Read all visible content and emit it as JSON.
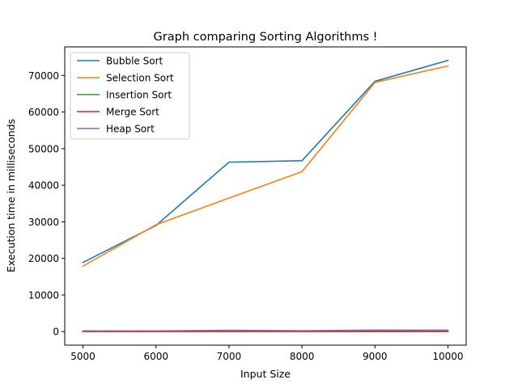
{
  "chart_data": {
    "type": "line",
    "title": "Graph comparing Sorting Algorithms !",
    "xlabel": "Input Size",
    "ylabel": "Execution time in milliseconds",
    "x": [
      5000,
      6000,
      7000,
      8000,
      9000,
      10000
    ],
    "xticks": [
      "5000",
      "6000",
      "7000",
      "8000",
      "9000",
      "10000"
    ],
    "yticks": [
      "0",
      "10000",
      "20000",
      "30000",
      "40000",
      "50000",
      "60000",
      "70000"
    ],
    "xlim": [
      4750,
      10250
    ],
    "ylim": [
      -3700,
      77800
    ],
    "legend_position": "upper-left",
    "grid": false,
    "series": [
      {
        "name": "Bubble Sort",
        "color": "#1f77b4",
        "values": [
          18900,
          29000,
          46300,
          46700,
          68400,
          74100
        ]
      },
      {
        "name": "Selection Sort",
        "color": "#ff7f0e",
        "values": [
          17900,
          29200,
          36500,
          43700,
          68100,
          72600
        ]
      },
      {
        "name": "Insertion Sort",
        "color": "#2ca02c",
        "values": [
          20,
          30,
          40,
          30,
          20,
          30
        ]
      },
      {
        "name": "Merge Sort",
        "color": "#d62728",
        "values": [
          60,
          70,
          80,
          70,
          100,
          90
        ]
      },
      {
        "name": "Heap Sort",
        "color": "#9467bd",
        "values": [
          200,
          220,
          380,
          260,
          420,
          410
        ]
      }
    ]
  }
}
